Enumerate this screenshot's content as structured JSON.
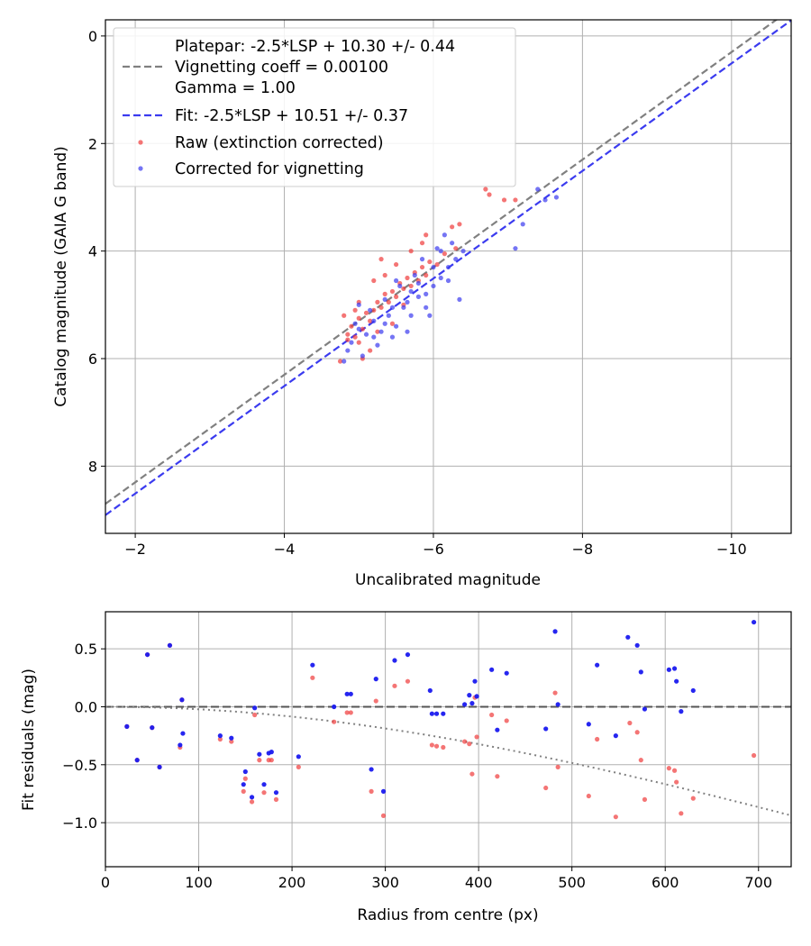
{
  "chart_data": [
    {
      "type": "scatter",
      "title": "",
      "xlabel": "Uncalibrated magnitude",
      "ylabel": "Catalog magnitude (GAIA G band)",
      "xlim": [
        -1.6,
        -10.8
      ],
      "ylim": [
        9.25,
        -0.3
      ],
      "xticks": [
        -2,
        -4,
        -6,
        -8,
        -10
      ],
      "xtick_labels": [
        "−2",
        "−4",
        "−6",
        "−8",
        "−10"
      ],
      "yticks": [
        0,
        2,
        4,
        6,
        8
      ],
      "ytick_labels": [
        "0",
        "2",
        "4",
        "6",
        "8"
      ],
      "grid": true,
      "legend_position": "top-left",
      "lines": [
        {
          "name": "Platepar: -2.5*LSP + 10.30 +/- 0.44\nVignetting coeff = 0.00100\nGamma = 1.00",
          "slope": 1,
          "intercept": 10.3,
          "color": "#808080",
          "style": "dashed"
        },
        {
          "name": "Fit: -2.5*LSP + 10.51 +/- 0.37",
          "slope": 1,
          "intercept": 10.51,
          "color": "#3b3bef",
          "style": "dashed"
        }
      ],
      "series": [
        {
          "name": "Raw (extinction corrected)",
          "color": "#ef3b3b",
          "points": [
            [
              -4.75,
              6.05
            ],
            [
              -4.85,
              5.55
            ],
            [
              -4.9,
              5.4
            ],
            [
              -4.95,
              5.6
            ],
            [
              -5.0,
              5.25
            ],
            [
              -5.05,
              5.45
            ],
            [
              -5.1,
              5.15
            ],
            [
              -5.15,
              5.3
            ],
            [
              -5.2,
              5.1
            ],
            [
              -5.25,
              4.95
            ],
            [
              -5.3,
              5.05
            ],
            [
              -5.35,
              4.8
            ],
            [
              -5.4,
              4.95
            ],
            [
              -5.45,
              4.75
            ],
            [
              -5.5,
              4.85
            ],
            [
              -5.55,
              4.6
            ],
            [
              -5.6,
              4.7
            ],
            [
              -5.65,
              4.5
            ],
            [
              -5.7,
              4.65
            ],
            [
              -5.75,
              4.4
            ],
            [
              -5.8,
              4.55
            ],
            [
              -5.85,
              4.3
            ],
            [
              -5.9,
              4.45
            ],
            [
              -5.95,
              4.2
            ],
            [
              -6.05,
              4.25
            ],
            [
              -6.15,
              4.05
            ],
            [
              -6.3,
              3.95
            ],
            [
              -6.35,
              3.5
            ],
            [
              -6.25,
              3.55
            ],
            [
              -5.85,
              3.85
            ],
            [
              -5.9,
              3.7
            ],
            [
              -6.7,
              2.85
            ],
            [
              -6.75,
              2.95
            ],
            [
              -6.95,
              3.05
            ],
            [
              -7.1,
              3.05
            ],
            [
              -5.0,
              5.7
            ],
            [
              -5.15,
              5.85
            ],
            [
              -4.8,
              5.2
            ],
            [
              -5.25,
              5.5
            ],
            [
              -5.45,
              5.35
            ],
            [
              -5.6,
              5.0
            ],
            [
              -5.2,
              4.55
            ],
            [
              -5.5,
              4.25
            ],
            [
              -5.3,
              4.15
            ],
            [
              -5.0,
              4.95
            ],
            [
              -4.95,
              5.1
            ],
            [
              -5.7,
              4.0
            ],
            [
              -5.05,
              6.0
            ],
            [
              -5.35,
              4.45
            ],
            [
              -4.85,
              5.65
            ]
          ]
        },
        {
          "name": "Corrected for vignetting",
          "color": "#3b3bef",
          "points": [
            [
              -4.8,
              6.05
            ],
            [
              -4.9,
              5.7
            ],
            [
              -5.0,
              5.45
            ],
            [
              -5.1,
              5.55
            ],
            [
              -5.2,
              5.3
            ],
            [
              -5.3,
              5.5
            ],
            [
              -5.4,
              5.2
            ],
            [
              -5.5,
              5.4
            ],
            [
              -5.6,
              5.05
            ],
            [
              -5.7,
              5.2
            ],
            [
              -5.8,
              4.85
            ],
            [
              -5.9,
              5.05
            ],
            [
              -6.0,
              4.65
            ],
            [
              -6.1,
              4.5
            ],
            [
              -6.2,
              4.3
            ],
            [
              -6.3,
              4.15
            ],
            [
              -6.4,
              4.0
            ],
            [
              -6.35,
              4.9
            ],
            [
              -5.95,
              5.2
            ],
            [
              -5.65,
              5.5
            ],
            [
              -5.45,
              5.6
            ],
            [
              -5.25,
              5.75
            ],
            [
              -5.05,
              5.95
            ],
            [
              -7.1,
              3.95
            ],
            [
              -7.2,
              3.5
            ],
            [
              -7.4,
              2.85
            ],
            [
              -7.5,
              3.05
            ],
            [
              -7.65,
              3.0
            ],
            [
              -6.05,
              3.95
            ],
            [
              -6.15,
              3.7
            ],
            [
              -5.85,
              4.15
            ],
            [
              -5.75,
              4.45
            ],
            [
              -5.55,
              4.65
            ],
            [
              -5.35,
              4.9
            ],
            [
              -5.15,
              5.1
            ],
            [
              -4.95,
              5.35
            ],
            [
              -6.25,
              3.85
            ],
            [
              -6.0,
              4.3
            ],
            [
              -5.8,
              4.6
            ],
            [
              -5.9,
              4.8
            ],
            [
              -5.65,
              4.95
            ],
            [
              -5.45,
              5.05
            ],
            [
              -5.2,
              5.6
            ],
            [
              -5.35,
              5.35
            ],
            [
              -6.1,
              4.0
            ],
            [
              -5.7,
              4.75
            ],
            [
              -5.5,
              4.55
            ],
            [
              -5.0,
              5.0
            ],
            [
              -4.85,
              5.85
            ],
            [
              -6.2,
              4.55
            ]
          ]
        }
      ]
    },
    {
      "type": "scatter",
      "title": "",
      "xlabel": "Radius from centre (px)",
      "ylabel": "Fit residuals (mag)",
      "xlim": [
        0,
        735
      ],
      "ylim": [
        -1.38,
        0.82
      ],
      "xticks": [
        0,
        100,
        200,
        300,
        400,
        500,
        600,
        700
      ],
      "xtick_labels": [
        "0",
        "100",
        "200",
        "300",
        "400",
        "500",
        "600",
        "700"
      ],
      "yticks": [
        0.5,
        0.0,
        -0.5,
        -1.0
      ],
      "ytick_labels": [
        "0.5",
        "0.0",
        "−0.5",
        "−1.0"
      ],
      "grid": true,
      "lines": [
        {
          "name": "zero line",
          "y": 0.0,
          "color": "#555555",
          "style": "dashed"
        },
        {
          "name": "vignetting curve",
          "coeff": 0.001,
          "color": "#808080",
          "style": "dotted"
        }
      ],
      "series": [
        {
          "name": "Raw (extinction corrected)",
          "color": "#ef3b3b",
          "points": [
            [
              23,
              -0.17
            ],
            [
              34,
              -0.46
            ],
            [
              45,
              0.45
            ],
            [
              50,
              -0.18
            ],
            [
              58,
              -0.52
            ],
            [
              69,
              0.53
            ],
            [
              80,
              -0.35
            ],
            [
              82,
              0.06
            ],
            [
              123,
              -0.28
            ],
            [
              135,
              -0.3
            ],
            [
              148,
              -0.73
            ],
            [
              150,
              -0.62
            ],
            [
              157,
              -0.82
            ],
            [
              160,
              -0.07
            ],
            [
              165,
              -0.46
            ],
            [
              170,
              -0.74
            ],
            [
              175,
              -0.46
            ],
            [
              178,
              -0.46
            ],
            [
              183,
              -0.8
            ],
            [
              207,
              -0.52
            ],
            [
              222,
              0.25
            ],
            [
              245,
              -0.13
            ],
            [
              259,
              -0.05
            ],
            [
              263,
              -0.05
            ],
            [
              285,
              -0.73
            ],
            [
              290,
              0.05
            ],
            [
              298,
              -0.94
            ],
            [
              310,
              0.18
            ],
            [
              324,
              0.22
            ],
            [
              350,
              -0.33
            ],
            [
              355,
              -0.34
            ],
            [
              362,
              -0.35
            ],
            [
              385,
              -0.3
            ],
            [
              390,
              -0.32
            ],
            [
              393,
              -0.58
            ],
            [
              396,
              0.08
            ],
            [
              398,
              -0.26
            ],
            [
              414,
              -0.07
            ],
            [
              420,
              -0.6
            ],
            [
              430,
              -0.12
            ],
            [
              472,
              -0.7
            ],
            [
              482,
              0.12
            ],
            [
              485,
              -0.52
            ],
            [
              518,
              -0.77
            ],
            [
              527,
              -0.28
            ],
            [
              547,
              -0.95
            ],
            [
              562,
              -0.14
            ],
            [
              570,
              -0.22
            ],
            [
              574,
              -0.46
            ],
            [
              578,
              -0.8
            ],
            [
              604,
              -0.53
            ],
            [
              610,
              -0.55
            ],
            [
              612,
              -0.65
            ],
            [
              617,
              -0.92
            ],
            [
              630,
              -0.79
            ],
            [
              695,
              -0.42
            ]
          ]
        },
        {
          "name": "Corrected for vignetting",
          "color": "#1a1aef",
          "points": [
            [
              23,
              -0.17
            ],
            [
              34,
              -0.46
            ],
            [
              45,
              0.45
            ],
            [
              50,
              -0.18
            ],
            [
              58,
              -0.52
            ],
            [
              69,
              0.53
            ],
            [
              80,
              -0.33
            ],
            [
              82,
              0.06
            ],
            [
              83,
              -0.23
            ],
            [
              123,
              -0.25
            ],
            [
              135,
              -0.27
            ],
            [
              148,
              -0.67
            ],
            [
              150,
              -0.56
            ],
            [
              157,
              -0.78
            ],
            [
              160,
              -0.01
            ],
            [
              165,
              -0.41
            ],
            [
              170,
              -0.67
            ],
            [
              175,
              -0.4
            ],
            [
              178,
              -0.39
            ],
            [
              183,
              -0.74
            ],
            [
              207,
              -0.43
            ],
            [
              222,
              0.36
            ],
            [
              245,
              0.0
            ],
            [
              259,
              0.11
            ],
            [
              263,
              0.11
            ],
            [
              285,
              -0.54
            ],
            [
              290,
              0.24
            ],
            [
              298,
              -0.73
            ],
            [
              310,
              0.4
            ],
            [
              324,
              0.45
            ],
            [
              348,
              0.14
            ],
            [
              350,
              -0.06
            ],
            [
              355,
              -0.06
            ],
            [
              362,
              -0.06
            ],
            [
              385,
              0.02
            ],
            [
              390,
              0.1
            ],
            [
              393,
              0.03
            ],
            [
              396,
              0.22
            ],
            [
              398,
              0.09
            ],
            [
              414,
              0.32
            ],
            [
              420,
              -0.2
            ],
            [
              430,
              0.29
            ],
            [
              472,
              -0.19
            ],
            [
              482,
              0.65
            ],
            [
              485,
              0.02
            ],
            [
              518,
              -0.15
            ],
            [
              527,
              0.36
            ],
            [
              547,
              -0.25
            ],
            [
              560,
              0.6
            ],
            [
              570,
              0.53
            ],
            [
              574,
              0.3
            ],
            [
              578,
              -0.02
            ],
            [
              604,
              0.32
            ],
            [
              610,
              0.33
            ],
            [
              612,
              0.22
            ],
            [
              617,
              -0.04
            ],
            [
              630,
              0.14
            ],
            [
              695,
              0.73
            ]
          ]
        }
      ]
    }
  ]
}
